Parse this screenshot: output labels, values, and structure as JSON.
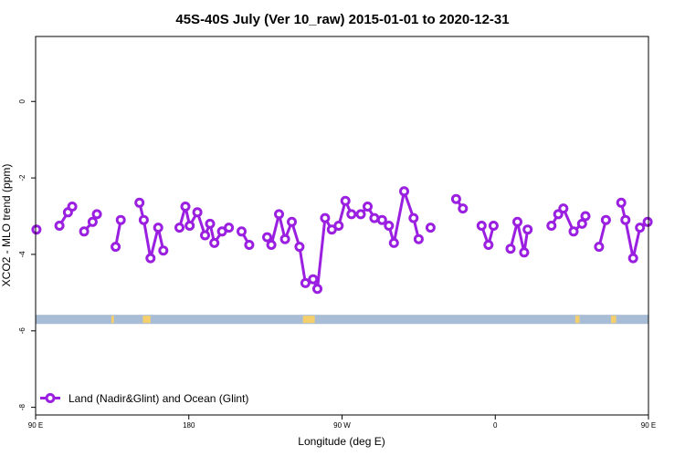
{
  "chart_data": {
    "type": "line",
    "title": "45S-40S July (Ver 10_raw)   2015-01-01 to 2020-12-31",
    "xlabel": "Longitude (deg E)",
    "ylabel": "XCO2 - MLO trend (ppm)",
    "xlim": [
      90,
      450
    ],
    "ylim": [
      -8.2,
      1.7
    ],
    "x_ticks": [
      {
        "value": 90,
        "label": "90 E"
      },
      {
        "value": 180,
        "label": "180"
      },
      {
        "value": 270,
        "label": "90 W"
      },
      {
        "value": 360,
        "label": "0"
      },
      {
        "value": 450,
        "label": "90 E"
      },
      {
        "value": 540,
        "label": "180"
      }
    ],
    "y_ticks": [
      {
        "value": 0,
        "label": "0"
      },
      {
        "value": -2,
        "label": "-2"
      },
      {
        "value": -4,
        "label": "-4"
      },
      {
        "value": -6,
        "label": "-6"
      },
      {
        "value": -8,
        "label": "-8"
      }
    ],
    "grid": false,
    "legend": {
      "position": "bottom-left",
      "entries": [
        "Land (Nadir&Glint) and Ocean (Glint)"
      ]
    },
    "series": [
      {
        "name": "Land (Nadir&Glint) and Ocean (Glint)",
        "color": "#9a1fe0",
        "points": [
          [
            90.5,
            -3.35
          ],
          [
            104,
            -3.25
          ],
          [
            109,
            -2.9
          ],
          [
            111.5,
            -2.75
          ],
          [
            118.5,
            -3.4
          ],
          [
            123.5,
            -3.15
          ],
          [
            126,
            -2.95
          ],
          [
            137,
            -3.8
          ],
          [
            140,
            -3.1
          ],
          [
            151,
            -2.65
          ],
          [
            153.5,
            -3.1
          ],
          [
            157.5,
            -4.1
          ],
          [
            162,
            -3.3
          ],
          [
            165,
            -3.9
          ],
          [
            174.5,
            -3.3
          ],
          [
            178,
            -2.75
          ],
          [
            180.5,
            -3.25
          ],
          [
            185,
            -2.9
          ],
          [
            189.5,
            -3.5
          ],
          [
            192.5,
            -3.2
          ],
          [
            195,
            -3.7
          ],
          [
            199.5,
            -3.4
          ],
          [
            203.5,
            -3.3
          ],
          [
            211,
            -3.4
          ],
          [
            215.5,
            -3.75
          ],
          [
            226,
            -3.55
          ],
          [
            228.5,
            -3.75
          ],
          [
            233,
            -2.95
          ],
          [
            236.5,
            -3.6
          ],
          [
            240.5,
            -3.15
          ],
          [
            245,
            -3.8
          ],
          [
            248.5,
            -4.75
          ],
          [
            253,
            -4.65
          ],
          [
            255.5,
            -4.9
          ],
          [
            260,
            -3.05
          ],
          [
            264,
            -3.35
          ],
          [
            268,
            -3.25
          ],
          [
            272,
            -2.6
          ],
          [
            275.5,
            -2.95
          ],
          [
            281,
            -2.95
          ],
          [
            285,
            -2.75
          ],
          [
            289,
            -3.05
          ],
          [
            293.5,
            -3.1
          ],
          [
            297.5,
            -3.25
          ],
          [
            300.5,
            -3.7
          ],
          [
            306.5,
            -2.35
          ],
          [
            312,
            -3.05
          ],
          [
            315,
            -3.6
          ],
          [
            322,
            -3.3
          ],
          [
            337,
            -2.55
          ],
          [
            341,
            -2.8
          ],
          [
            352,
            -3.25
          ],
          [
            356,
            -3.75
          ],
          [
            359,
            -3.25
          ],
          [
            369,
            -3.85
          ],
          [
            373,
            -3.15
          ],
          [
            377,
            -3.95
          ],
          [
            379,
            -3.35
          ],
          [
            393,
            -3.25
          ],
          [
            397,
            -2.95
          ],
          [
            400,
            -2.8
          ],
          [
            406,
            -3.4
          ],
          [
            411,
            -3.2
          ],
          [
            413,
            -3.0
          ],
          [
            421,
            -3.8
          ],
          [
            425,
            -3.1
          ],
          [
            434,
            -2.65
          ],
          [
            436.5,
            -3.1
          ],
          [
            441,
            -4.1
          ],
          [
            445,
            -3.3
          ],
          [
            449.5,
            -3.15
          ]
        ]
      }
    ],
    "land_ocean_strip": {
      "y_range": [
        -5.82,
        -5.58
      ],
      "ocean_color": "#a8bcd6",
      "land_color": "#f5cf6c",
      "land_segments": [
        [
          134.5,
          136
        ],
        [
          153,
          157.5
        ],
        [
          247,
          254
        ],
        [
          407,
          409.5
        ],
        [
          428,
          431
        ]
      ]
    }
  }
}
